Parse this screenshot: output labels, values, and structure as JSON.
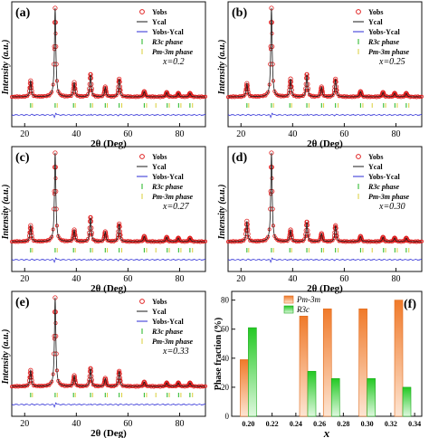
{
  "figure": {
    "panels": [
      {
        "letter": "(a)",
        "x_value": "x=0.2"
      },
      {
        "letter": "(b)",
        "x_value": "x=0.25"
      },
      {
        "letter": "(c)",
        "x_value": "x=0.27"
      },
      {
        "letter": "(d)",
        "x_value": "x=0.30"
      },
      {
        "letter": "(e)",
        "x_value": "x=0.33"
      },
      {
        "letter": "(f)"
      }
    ]
  },
  "colors": {
    "yobs": "#e02020",
    "ycal": "#1a1a1a",
    "diff": "#2b2bd6",
    "r3c": "#1fb51f",
    "pm3m": "#d9cf3a",
    "bar_pm3m": "#f07a2a",
    "bar_r3c": "#2ed12e"
  },
  "chart_data": [
    {
      "type": "line",
      "panel": "(a)",
      "xlabel": "2θ (Deg)",
      "ylabel": "Intensity (a.u.)",
      "xlim": [
        15,
        90
      ],
      "x_ticks": [
        20,
        40,
        60,
        80
      ],
      "legend": [
        "Yobs",
        "Ycal",
        "Yobs-Ycal",
        "R3c phase",
        "Pm-3m phase"
      ],
      "annotation": "x=0.2",
      "peaks": [
        [
          22.3,
          0.18
        ],
        [
          31.8,
          1.0
        ],
        [
          39.2,
          0.16
        ],
        [
          45.5,
          0.25
        ],
        [
          51.2,
          0.11
        ],
        [
          56.6,
          0.2
        ],
        [
          66.3,
          0.06
        ],
        [
          75.0,
          0.05
        ],
        [
          79.5,
          0.04
        ],
        [
          84.0,
          0.04
        ]
      ]
    },
    {
      "type": "line",
      "panel": "(b)",
      "xlabel": "2θ (Deg)",
      "ylabel": "Intensity (a.u.)",
      "xlim": [
        15,
        90
      ],
      "x_ticks": [
        20,
        40,
        60,
        80
      ],
      "legend": [
        "Yobs",
        "Ycal",
        "Yobs-Ycal",
        "R3c phase",
        "Pm-3m phase"
      ],
      "annotation": "x=0.25",
      "peaks": [
        [
          22.3,
          0.15
        ],
        [
          31.8,
          1.0
        ],
        [
          39.2,
          0.2
        ],
        [
          45.5,
          0.25
        ],
        [
          51.2,
          0.11
        ],
        [
          56.6,
          0.2
        ],
        [
          66.3,
          0.06
        ],
        [
          75.0,
          0.05
        ],
        [
          79.5,
          0.04
        ],
        [
          84.0,
          0.04
        ]
      ]
    },
    {
      "type": "line",
      "panel": "(c)",
      "xlabel": "2θ (Deg)",
      "ylabel": "Intensity (a.u.)",
      "xlim": [
        15,
        90
      ],
      "x_ticks": [
        20,
        40,
        60,
        80
      ],
      "legend": [
        "Yobs",
        "Ycal",
        "Yobs-Ycal",
        "R3c phase",
        "Pm-3m phase"
      ],
      "annotation": "x=0.27",
      "peaks": [
        [
          22.3,
          0.18
        ],
        [
          31.8,
          1.0
        ],
        [
          39.2,
          0.13
        ],
        [
          45.5,
          0.27
        ],
        [
          51.2,
          0.11
        ],
        [
          56.6,
          0.2
        ],
        [
          66.3,
          0.06
        ],
        [
          75.0,
          0.05
        ],
        [
          79.5,
          0.04
        ],
        [
          84.0,
          0.04
        ]
      ]
    },
    {
      "type": "line",
      "panel": "(d)",
      "xlabel": "2θ (Deg)",
      "ylabel": "Intensity (a.u.)",
      "xlim": [
        15,
        90
      ],
      "x_ticks": [
        20,
        40,
        60,
        80
      ],
      "legend": [
        "Yobs",
        "Ycal",
        "Yobs-Ycal",
        "R3c phase",
        "Pm-3m phase"
      ],
      "annotation": "x=0.30",
      "peaks": [
        [
          22.3,
          0.23
        ],
        [
          31.8,
          1.0
        ],
        [
          39.2,
          0.13
        ],
        [
          45.5,
          0.22
        ],
        [
          51.2,
          0.09
        ],
        [
          56.6,
          0.18
        ],
        [
          66.3,
          0.06
        ],
        [
          75.0,
          0.05
        ],
        [
          79.5,
          0.04
        ],
        [
          84.0,
          0.04
        ]
      ]
    },
    {
      "type": "line",
      "panel": "(e)",
      "xlabel": "2θ (Deg)",
      "ylabel": "Intensity (a.u.)",
      "xlim": [
        15,
        90
      ],
      "x_ticks": [
        20,
        40,
        60,
        80
      ],
      "legend": [
        "Yobs",
        "Ycal",
        "Yobs-Ycal",
        "R3c phase",
        "Pm-3m phase"
      ],
      "annotation": "x=0.33",
      "peaks": [
        [
          22.3,
          0.18
        ],
        [
          31.8,
          1.0
        ],
        [
          39.2,
          0.12
        ],
        [
          45.5,
          0.2
        ],
        [
          51.2,
          0.09
        ],
        [
          56.6,
          0.17
        ],
        [
          66.3,
          0.05
        ],
        [
          75.0,
          0.04
        ],
        [
          79.5,
          0.04
        ],
        [
          84.0,
          0.04
        ]
      ]
    },
    {
      "type": "bar",
      "panel": "(f)",
      "xlabel": "x",
      "ylabel": "Phase fraction (%)",
      "xlim": [
        0.186,
        0.346
      ],
      "ylim": [
        0,
        86
      ],
      "x_ticks": [
        "0.20",
        "0.22",
        "0.24",
        "0.26",
        "0.28",
        "0.30",
        "0.32",
        "0.34"
      ],
      "y_ticks": [
        0,
        20,
        40,
        60,
        80
      ],
      "categories": [
        0.2,
        0.25,
        0.27,
        0.3,
        0.33
      ],
      "series": [
        {
          "name": "Pm-3m",
          "values": [
            39,
            69,
            74,
            74,
            80
          ]
        },
        {
          "name": "R3c",
          "values": [
            61,
            31,
            26,
            26,
            20
          ]
        }
      ],
      "legend": [
        "Pm-3m",
        "R3c"
      ]
    }
  ]
}
